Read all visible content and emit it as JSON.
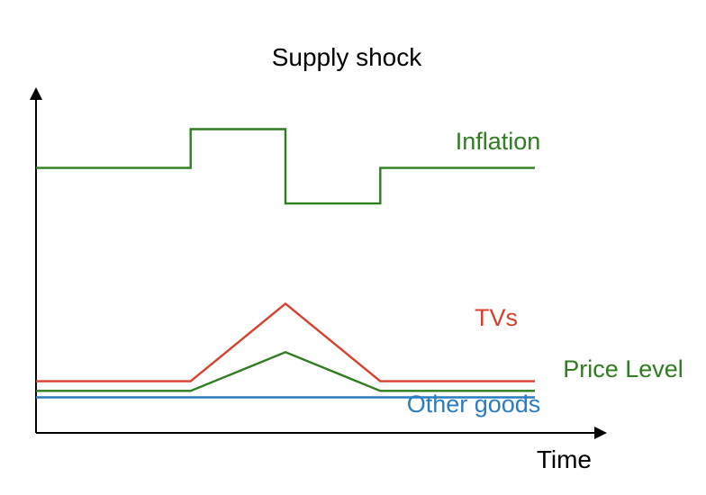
{
  "chart_data": {
    "type": "line",
    "title": "Supply shock",
    "xlabel": "Time",
    "ylabel": "",
    "grid": false,
    "legend": "inline-right",
    "axis_color": "#000000",
    "x_range": [
      0,
      10
    ],
    "y_range": [
      0,
      10
    ],
    "series": [
      {
        "name": "Inflation",
        "color": "#2e7d1f",
        "points": [
          [
            0,
            8.2
          ],
          [
            3.1,
            8.2
          ],
          [
            3.1,
            9.4
          ],
          [
            5.0,
            9.4
          ],
          [
            5.0,
            7.1
          ],
          [
            6.9,
            7.1
          ],
          [
            6.9,
            8.2
          ],
          [
            10,
            8.2
          ]
        ]
      },
      {
        "name": "TVs",
        "color": "#d9402b",
        "points": [
          [
            0,
            1.6
          ],
          [
            3.1,
            1.6
          ],
          [
            5.0,
            4.0
          ],
          [
            6.9,
            1.6
          ],
          [
            10,
            1.6
          ]
        ]
      },
      {
        "name": "Price Level",
        "color": "#2e7d1f",
        "points": [
          [
            0,
            1.3
          ],
          [
            3.1,
            1.3
          ],
          [
            5.0,
            2.5
          ],
          [
            6.9,
            1.3
          ],
          [
            10,
            1.3
          ]
        ]
      },
      {
        "name": "Other goods",
        "color": "#2a7dbf",
        "points": [
          [
            0,
            1.1
          ],
          [
            10,
            1.1
          ]
        ]
      }
    ]
  }
}
